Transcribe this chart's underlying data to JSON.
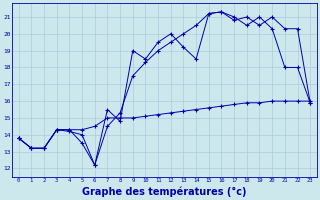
{
  "background_color": "#cce8ec",
  "grid_color": "#aaccdd",
  "line_color": "#0000aa",
  "xlabel": "Graphe des températures (°c)",
  "xlabel_fontsize": 7,
  "ylim": [
    11.5,
    21.8
  ],
  "xlim": [
    -0.5,
    23.5
  ],
  "yticks": [
    12,
    13,
    14,
    15,
    16,
    17,
    18,
    19,
    20,
    21
  ],
  "xtick_labels": [
    "0",
    "1",
    "2",
    "3",
    "4",
    "5",
    "6",
    "7",
    "8",
    "9",
    "10",
    "11",
    "12",
    "13",
    "14",
    "15",
    "16",
    "17",
    "18",
    "19",
    "20",
    "21",
    "22",
    "23"
  ],
  "series1_x": [
    0,
    1,
    2,
    3,
    4,
    5,
    6,
    7,
    8,
    9,
    10,
    11,
    12,
    13,
    14,
    15,
    16,
    17,
    18,
    19,
    20,
    21,
    22,
    23
  ],
  "series1_y": [
    13.8,
    13.2,
    13.2,
    14.3,
    14.3,
    13.5,
    12.2,
    15.5,
    14.8,
    19.0,
    18.5,
    19.5,
    20.0,
    19.2,
    18.5,
    21.2,
    21.3,
    21.0,
    20.5,
    21.0,
    20.3,
    18.0,
    18.0,
    15.9
  ],
  "series2_x": [
    0,
    1,
    2,
    3,
    4,
    5,
    6,
    7,
    8,
    9,
    10,
    11,
    12,
    13,
    14,
    15,
    16,
    17,
    18,
    19,
    20,
    21,
    22,
    23
  ],
  "series2_y": [
    13.8,
    13.2,
    13.2,
    14.3,
    14.2,
    14.0,
    12.2,
    14.5,
    15.3,
    17.5,
    18.3,
    19.0,
    19.5,
    20.0,
    20.5,
    21.2,
    21.3,
    20.8,
    21.0,
    20.5,
    21.0,
    20.3,
    20.3,
    15.9
  ],
  "series3_x": [
    0,
    1,
    2,
    3,
    4,
    5,
    6,
    7,
    8,
    9,
    10,
    11,
    12,
    13,
    14,
    15,
    16,
    17,
    18,
    19,
    20,
    21,
    22,
    23
  ],
  "series3_y": [
    13.8,
    13.2,
    13.2,
    14.3,
    14.3,
    14.3,
    14.5,
    15.0,
    15.0,
    15.0,
    15.1,
    15.2,
    15.3,
    15.4,
    15.5,
    15.6,
    15.7,
    15.8,
    15.9,
    15.9,
    16.0,
    16.0,
    16.0,
    16.0
  ]
}
